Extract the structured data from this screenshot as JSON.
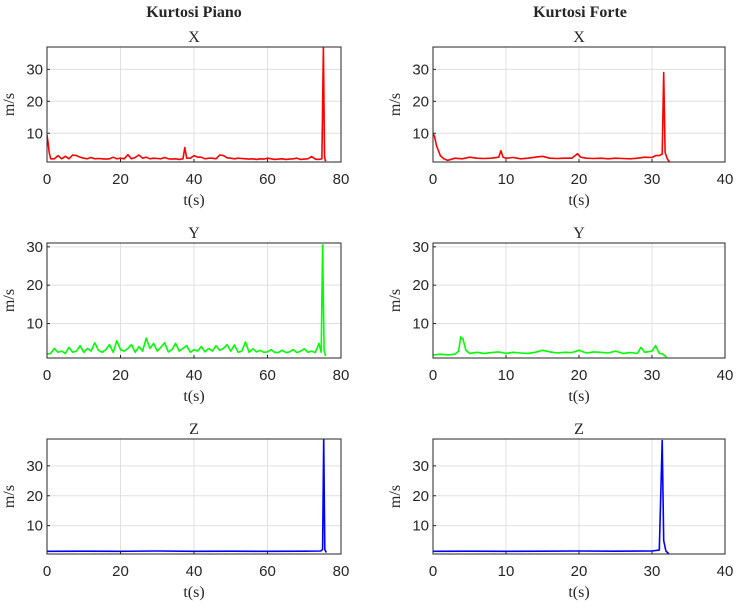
{
  "column_titles": [
    "Kurtosi Piano",
    "Kurtosi Forte"
  ],
  "chart_data": [
    {
      "type": "line",
      "column": "Kurtosi Piano",
      "title": "X",
      "xlabel": "t(s)",
      "ylabel": "m/s",
      "color": "#ff0000",
      "xlim": [
        0,
        80
      ],
      "ylim": [
        1,
        37
      ],
      "grid": true,
      "xticks": [
        0,
        20,
        40,
        60,
        80
      ],
      "yticks": [
        10,
        20,
        30
      ],
      "series": [
        {
          "x": [
            0,
            0.3,
            0.6,
            1,
            2,
            3,
            4,
            5,
            6,
            7,
            8,
            9,
            10,
            11,
            12,
            13,
            14,
            15,
            16,
            17,
            18,
            19,
            20,
            21,
            22,
            23,
            24,
            25,
            26,
            27,
            28,
            29,
            30,
            31,
            32,
            33,
            34,
            35,
            36,
            37,
            37.5,
            38,
            39,
            40,
            41,
            42,
            43,
            44,
            45,
            46,
            47,
            48,
            49,
            50,
            51,
            52,
            53,
            54,
            55,
            56,
            57,
            58,
            59,
            60,
            61,
            62,
            63,
            64,
            65,
            66,
            67,
            68,
            69,
            70,
            71,
            72,
            73,
            74,
            74.8,
            75.2,
            75.5,
            75.7,
            76
          ],
          "y": [
            9.5,
            7,
            4,
            2,
            2,
            3,
            2,
            2.8,
            2,
            3.2,
            3,
            2.5,
            2.2,
            2,
            2.4,
            2,
            2.1,
            2,
            1.9,
            2,
            2.5,
            2,
            2.2,
            2,
            3.3,
            2,
            2.4,
            3.2,
            2.2,
            2.5,
            2,
            2.2,
            2.1,
            2,
            2.4,
            2,
            1.9,
            2,
            1.8,
            2,
            5.5,
            2.2,
            2.2,
            3,
            2.5,
            2.5,
            2,
            2.2,
            2.2,
            2,
            3.2,
            3,
            2.3,
            2.2,
            2,
            2.2,
            2.1,
            2,
            1.9,
            2,
            1.8,
            2,
            1.9,
            2.2,
            2,
            1.8,
            1.9,
            2,
            1.8,
            1.9,
            2,
            2.2,
            1.8,
            1.9,
            2,
            2.7,
            1.9,
            1.8,
            2,
            37,
            3,
            1.5,
            1.5
          ]
        }
      ]
    },
    {
      "type": "line",
      "column": "Kurtosi Forte",
      "title": "X",
      "xlabel": "t(s)",
      "ylabel": "m/s",
      "color": "#ff0000",
      "xlim": [
        0,
        40
      ],
      "ylim": [
        1,
        37
      ],
      "grid": true,
      "xticks": [
        0,
        10,
        20,
        30,
        40
      ],
      "yticks": [
        10,
        20,
        30
      ],
      "series": [
        {
          "x": [
            0,
            0.2,
            0.5,
            1,
            1.5,
            2,
            3,
            4,
            5,
            6,
            7,
            8,
            9,
            9.3,
            9.6,
            10,
            11,
            12,
            13,
            14,
            15,
            16,
            17,
            18,
            19,
            19.8,
            20.2,
            21,
            22,
            23,
            24,
            25,
            26,
            27,
            28,
            29,
            30,
            30.5,
            31,
            31.4,
            31.6,
            31.8,
            32.1,
            32.4
          ],
          "y": [
            10,
            9,
            6,
            3,
            2,
            1.5,
            2.2,
            2,
            2.5,
            2.2,
            2.1,
            2.2,
            2.5,
            4.5,
            2.5,
            2.2,
            2.4,
            2,
            2.2,
            2.5,
            2.8,
            2.2,
            2.1,
            2.2,
            2.2,
            3.6,
            2.5,
            2.2,
            2.1,
            2.2,
            2,
            2.2,
            2.1,
            2,
            2.2,
            2.5,
            2.4,
            3,
            3,
            3.5,
            29,
            4,
            2,
            1
          ]
        }
      ]
    },
    {
      "type": "line",
      "column": "Kurtosi Piano",
      "title": "Y",
      "xlabel": "t(s)",
      "ylabel": "m/s",
      "color": "#00ff00",
      "xlim": [
        0,
        80
      ],
      "ylim": [
        1,
        31
      ],
      "grid": true,
      "xticks": [
        0,
        20,
        40,
        60,
        80
      ],
      "yticks": [
        10,
        20,
        30
      ],
      "series": [
        {
          "x": [
            0,
            1,
            2,
            3,
            4,
            5,
            6,
            7,
            8,
            9,
            10,
            11,
            12,
            13,
            14,
            15,
            16,
            17,
            18,
            19,
            20,
            21,
            22,
            23,
            24,
            25,
            26,
            27,
            28,
            29,
            30,
            31,
            32,
            33,
            34,
            35,
            36,
            37,
            38,
            39,
            40,
            41,
            42,
            43,
            44,
            45,
            46,
            47,
            48,
            49,
            50,
            51,
            52,
            53,
            54,
            55,
            56,
            57,
            58,
            59,
            60,
            61,
            62,
            63,
            64,
            65,
            66,
            67,
            68,
            69,
            70,
            71,
            72,
            73,
            74,
            74.6,
            75,
            75.4,
            75.8
          ],
          "y": [
            2,
            2.2,
            3.5,
            2.5,
            2.8,
            2.2,
            3.8,
            2.5,
            2.8,
            4.2,
            2.5,
            3.5,
            2.8,
            5,
            3,
            2.5,
            3.2,
            4.5,
            2.5,
            5.5,
            3.2,
            2.8,
            3.5,
            4.5,
            2.5,
            4,
            2.8,
            6.2,
            3.5,
            4.8,
            2.8,
            3.8,
            5,
            2.6,
            3.2,
            4.8,
            2.8,
            3.5,
            4.2,
            2.5,
            3.2,
            2.8,
            4,
            2.6,
            3.5,
            2.8,
            4.2,
            3,
            3.5,
            4.5,
            2.8,
            4.4,
            2.5,
            2.8,
            5.2,
            2.5,
            3.4,
            2.6,
            3,
            2.5,
            2.6,
            3.2,
            2.4,
            2.5,
            3,
            2.4,
            2.6,
            3.2,
            2.4,
            2.8,
            3.4,
            2.5,
            2.8,
            2.4,
            4.8,
            2.5,
            30.5,
            3,
            1.5
          ]
        }
      ]
    },
    {
      "type": "line",
      "column": "Kurtosi Forte",
      "title": "Y",
      "xlabel": "t(s)",
      "ylabel": "m/s",
      "color": "#00ff00",
      "xlim": [
        0,
        40
      ],
      "ylim": [
        1,
        31
      ],
      "grid": true,
      "xticks": [
        0,
        10,
        20,
        30,
        40
      ],
      "yticks": [
        10,
        20,
        30
      ],
      "series": [
        {
          "x": [
            0,
            1,
            2,
            3,
            3.5,
            3.8,
            4.1,
            4.5,
            5,
            6,
            7,
            8,
            9,
            10,
            11,
            12,
            13,
            14,
            15,
            16,
            17,
            18,
            19,
            20,
            21,
            22,
            23,
            24,
            25,
            26,
            27,
            28,
            28.5,
            29,
            30,
            30.5,
            31,
            31.5,
            32
          ],
          "y": [
            1.8,
            2,
            1.8,
            2,
            2.8,
            6.5,
            6,
            3,
            2.2,
            2.5,
            2.2,
            2.4,
            2.6,
            2.2,
            2.5,
            2.3,
            2.2,
            2.5,
            3,
            2.6,
            2.3,
            2.5,
            2.4,
            3,
            2.3,
            2.6,
            2.5,
            2.3,
            2.8,
            2.2,
            2.4,
            2.2,
            3.8,
            2.5,
            2.8,
            4.2,
            2.2,
            2,
            1.2
          ]
        }
      ]
    },
    {
      "type": "line",
      "column": "Kurtosi Piano",
      "title": "Z",
      "xlabel": "t(s)",
      "ylabel": "m/s",
      "color": "#0000ff",
      "xlim": [
        0,
        80
      ],
      "ylim": [
        0.5,
        39
      ],
      "grid": true,
      "xticks": [
        0,
        20,
        40,
        60,
        80
      ],
      "yticks": [
        10,
        20,
        30
      ],
      "series": [
        {
          "x": [
            0,
            10,
            20,
            30,
            40,
            50,
            60,
            70,
            74.5,
            75,
            75.3,
            75.6,
            76
          ],
          "y": [
            1.4,
            1.45,
            1.4,
            1.5,
            1.4,
            1.45,
            1.4,
            1.45,
            1.5,
            2,
            39,
            2,
            1
          ]
        }
      ]
    },
    {
      "type": "line",
      "column": "Kurtosi Forte",
      "title": "Z",
      "xlabel": "t(s)",
      "ylabel": "m/s",
      "color": "#0000ff",
      "xlim": [
        0,
        40
      ],
      "ylim": [
        0.5,
        39
      ],
      "grid": true,
      "xticks": [
        0,
        10,
        20,
        30,
        40
      ],
      "yticks": [
        10,
        20,
        30
      ],
      "series": [
        {
          "x": [
            0,
            5,
            10,
            15,
            20,
            25,
            30,
            31,
            31.4,
            31.6,
            31.9,
            32.3
          ],
          "y": [
            1.4,
            1.45,
            1.4,
            1.45,
            1.5,
            1.45,
            1.5,
            1.8,
            38.5,
            5,
            1.5,
            0.6
          ]
        }
      ]
    }
  ]
}
